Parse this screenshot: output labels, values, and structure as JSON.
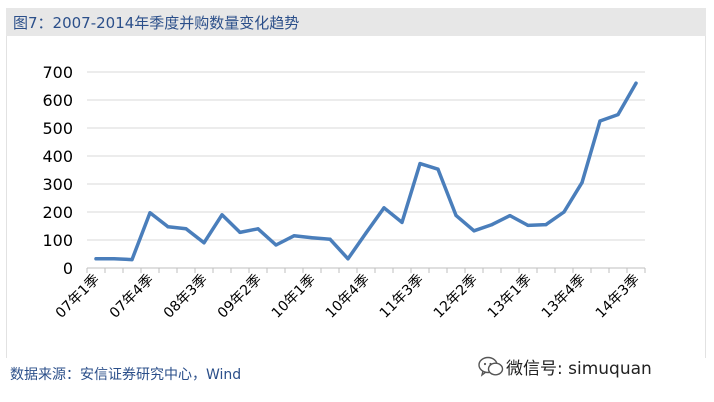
{
  "header": {
    "title": "图7：2007-2014年季度并购数量变化趋势"
  },
  "footer": {
    "source": "数据来源：安信证券研究中心，Wind"
  },
  "watermark": {
    "text": "微信号: simuquan",
    "icon": "wechat-logo-icon"
  },
  "colors": {
    "line": "#4a7ebb",
    "grid": "#d9d9d9",
    "title": "#2b4f8a",
    "title_bg": "#e7e7e7"
  },
  "chart_data": {
    "type": "line",
    "title": "",
    "xlabel": "",
    "ylabel": "",
    "ylim": [
      0,
      700
    ],
    "yticks": [
      "0",
      "100",
      "200",
      "300",
      "400",
      "500",
      "600",
      "700"
    ],
    "grid": true,
    "legend": "none",
    "x_tick_labels": [
      "07年1季",
      "07年4季",
      "08年3季",
      "09年2季",
      "10年1季",
      "10年4季",
      "11年3季",
      "12年2季",
      "13年1季",
      "13年4季",
      "14年3季"
    ],
    "x_tick_index": [
      0,
      3,
      6,
      9,
      12,
      15,
      18,
      21,
      24,
      27,
      30
    ],
    "series": [
      {
        "values": [
          33,
          33,
          30,
          197,
          147,
          140,
          90,
          190,
          127,
          140,
          82,
          115,
          108,
          103,
          33,
          125,
          215,
          163,
          373,
          353,
          188,
          133,
          155,
          187,
          152,
          155,
          200,
          305,
          525,
          548,
          660
        ]
      }
    ]
  }
}
